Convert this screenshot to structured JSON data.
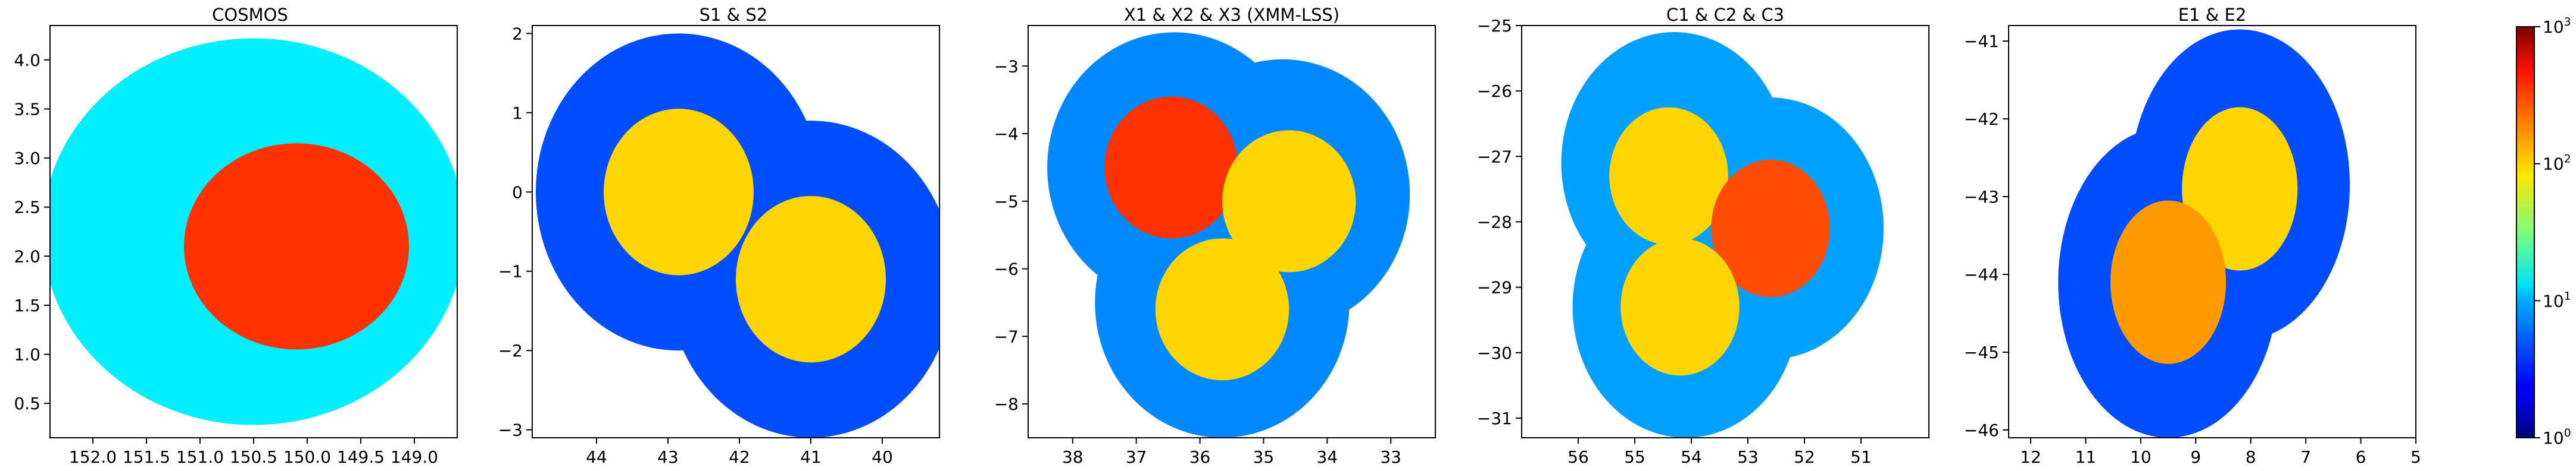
{
  "chart_data": [
    {
      "type": "heatmap",
      "title": "COSMOS",
      "xlabel": "",
      "ylabel": "",
      "xlim": [
        152.4,
        148.6
      ],
      "ylim": [
        0.15,
        4.35
      ],
      "x_ticks": [
        152.0,
        151.5,
        151.0,
        150.5,
        150.0,
        149.5,
        149.0,
        148.5
      ],
      "x_tick_labels": [
        "152.0",
        "151.5",
        "151.0",
        "150.5",
        "150.0",
        "149.5",
        "149.0",
        "148.5"
      ],
      "y_ticks": [
        0.5,
        1.0,
        1.5,
        2.0,
        2.5,
        3.0,
        3.5,
        4.0
      ],
      "y_tick_labels": [
        "0.5",
        "1.0",
        "1.5",
        "2.0",
        "2.5",
        "3.0",
        "3.5",
        "4.0"
      ],
      "footprint": [
        {
          "cx": 150.5,
          "cy": 2.25,
          "r": 1.97,
          "level": 12
        },
        {
          "cx": 150.1,
          "cy": 2.1,
          "r": 1.05,
          "level": 300
        }
      ]
    },
    {
      "type": "heatmap",
      "title": "S1 & S2",
      "xlabel": "",
      "ylabel": "",
      "xlim": [
        44.9,
        39.2
      ],
      "ylim": [
        -3.1,
        2.1
      ],
      "x_ticks": [
        44,
        43,
        42,
        41,
        40
      ],
      "x_tick_labels": [
        "44",
        "43",
        "42",
        "41",
        "40"
      ],
      "y_ticks": [
        -3,
        -2,
        -1,
        0,
        1,
        2
      ],
      "y_tick_labels": [
        "−3",
        "−2",
        "−1",
        "0",
        "1",
        "2"
      ],
      "footprint": [
        {
          "cx": 42.85,
          "cy": 0.0,
          "r": 2.0,
          "level": 4
        },
        {
          "cx": 41.0,
          "cy": -1.1,
          "r": 2.0,
          "level": 4
        },
        {
          "cx": 42.85,
          "cy": 0.0,
          "r": 1.05,
          "level": 100
        },
        {
          "cx": 41.0,
          "cy": -1.1,
          "r": 1.05,
          "level": 100
        }
      ]
    },
    {
      "type": "heatmap",
      "title": "X1 & X2 & X3 (XMM-LSS)",
      "xlabel": "",
      "ylabel": "",
      "xlim": [
        38.7,
        32.3
      ],
      "ylim": [
        -8.5,
        -2.4
      ],
      "x_ticks": [
        38,
        37,
        36,
        35,
        34,
        33
      ],
      "x_tick_labels": [
        "38",
        "37",
        "36",
        "35",
        "34",
        "33"
      ],
      "y_ticks": [
        -8,
        -7,
        -6,
        -5,
        -4,
        -3
      ],
      "y_tick_labels": [
        "−8",
        "−7",
        "−6",
        "−5",
        "−4",
        "−3"
      ],
      "footprint": [
        {
          "cx": 36.4,
          "cy": -4.5,
          "r": 2.0,
          "level": 6
        },
        {
          "cx": 34.7,
          "cy": -4.9,
          "r": 2.0,
          "level": 6
        },
        {
          "cx": 35.65,
          "cy": -6.5,
          "r": 2.0,
          "level": 6
        },
        {
          "cx": 36.45,
          "cy": -4.5,
          "r": 1.05,
          "level": 300
        },
        {
          "cx": 34.6,
          "cy": -5.0,
          "r": 1.05,
          "level": 100
        },
        {
          "cx": 35.65,
          "cy": -6.6,
          "r": 1.05,
          "level": 100
        }
      ]
    },
    {
      "type": "heatmap",
      "title": "C1 & C2 & C3",
      "xlabel": "",
      "ylabel": "",
      "xlim": [
        57.0,
        49.8
      ],
      "ylim": [
        -31.3,
        -25.0
      ],
      "x_ticks": [
        56,
        55,
        54,
        53,
        52,
        51
      ],
      "x_tick_labels": [
        "56",
        "55",
        "54",
        "53",
        "52",
        "51"
      ],
      "y_ticks": [
        -31,
        -30,
        -29,
        -28,
        -27,
        -26,
        -25
      ],
      "y_tick_labels": [
        "−31",
        "−30",
        "−29",
        "−28",
        "−27",
        "−26",
        "−25"
      ],
      "footprint": [
        {
          "cx": 54.3,
          "cy": -27.1,
          "r": 2.0,
          "level": 7
        },
        {
          "cx": 52.6,
          "cy": -28.1,
          "r": 2.0,
          "level": 7
        },
        {
          "cx": 54.1,
          "cy": -29.3,
          "r": 2.0,
          "level": 7
        },
        {
          "cx": 54.4,
          "cy": -27.3,
          "r": 1.05,
          "level": 100
        },
        {
          "cx": 52.6,
          "cy": -28.1,
          "r": 1.05,
          "level": 250
        },
        {
          "cx": 54.2,
          "cy": -29.3,
          "r": 1.05,
          "level": 100
        }
      ]
    },
    {
      "type": "heatmap",
      "title": "E1 & E2",
      "xlabel": "",
      "ylabel": "",
      "xlim": [
        12.4,
        5.0
      ],
      "ylim": [
        -46.1,
        -40.8
      ],
      "x_ticks": [
        12,
        11,
        10,
        9,
        8,
        7,
        6,
        5
      ],
      "x_tick_labels": [
        "12",
        "11",
        "10",
        "9",
        "8",
        "7",
        "6",
        "5"
      ],
      "y_ticks": [
        -46,
        -45,
        -44,
        -43,
        -42,
        -41
      ],
      "y_tick_labels": [
        "−46",
        "−45",
        "−44",
        "−43",
        "−42",
        "−41"
      ],
      "footprint": [
        {
          "cx": 8.2,
          "cy": -42.85,
          "r": 2.0,
          "level": 4
        },
        {
          "cx": 9.5,
          "cy": -44.1,
          "r": 2.0,
          "level": 4
        },
        {
          "cx": 8.2,
          "cy": -42.9,
          "r": 1.05,
          "level": 100
        },
        {
          "cx": 9.5,
          "cy": -44.1,
          "r": 1.05,
          "level": 150
        }
      ]
    }
  ],
  "colorbar": {
    "scale": "log",
    "range": [
      1,
      1000
    ],
    "colormap": "jet",
    "ticks": [
      1,
      10,
      100,
      1000
    ],
    "tick_base": "10",
    "tick_exponents": [
      "0",
      "1",
      "2",
      "3"
    ]
  }
}
